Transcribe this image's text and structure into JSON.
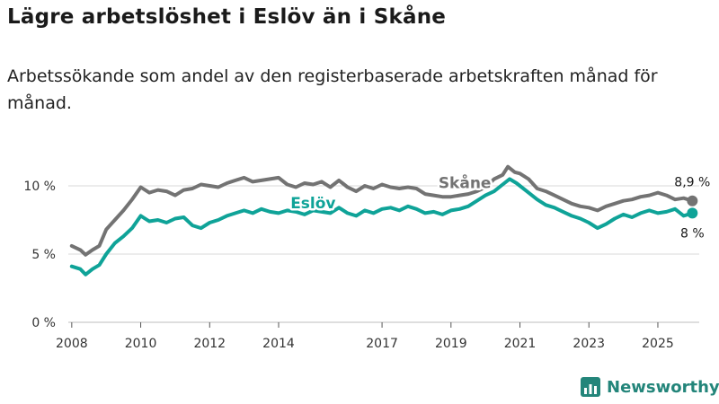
{
  "title": "Lägre arbetslöshet i Eslöv än i Skåne",
  "subtitle": "Arbetssökande som andel av den registerbaserade arbetskraften månad för månad.",
  "brand": {
    "name": "Newsworthy",
    "icon": "bar-chart-logo-icon",
    "color": "#23857a"
  },
  "colors": {
    "eslov": "#0fa398",
    "skane": "#737373",
    "grid": "#d9d9d9"
  },
  "chart_data": {
    "type": "line",
    "title": "Lägre arbetslöshet i Eslöv än i Skåne",
    "xlabel": "",
    "ylabel": "",
    "xlim": [
      2007.9,
      2026.2
    ],
    "ylim": [
      0,
      10.6
    ],
    "y_ticks": [
      {
        "value": 0,
        "label": "0 %"
      },
      {
        "value": 5,
        "label": "5 %"
      },
      {
        "value": 10,
        "label": "10 %"
      }
    ],
    "x_ticks": [
      {
        "value": 2008,
        "label": "2008"
      },
      {
        "value": 2010,
        "label": "2010"
      },
      {
        "value": 2012,
        "label": "2012"
      },
      {
        "value": 2014,
        "label": "2014"
      },
      {
        "value": 2017,
        "label": "2017"
      },
      {
        "value": 2019,
        "label": "2019"
      },
      {
        "value": 2021,
        "label": "2021"
      },
      {
        "value": 2023,
        "label": "2023"
      },
      {
        "value": 2025,
        "label": "2025"
      }
    ],
    "series": [
      {
        "name": "Skåne",
        "color": "#737373",
        "end_label": "8,9 %",
        "points": [
          [
            2008.0,
            5.6
          ],
          [
            2008.25,
            5.3
          ],
          [
            2008.4,
            4.95
          ],
          [
            2008.6,
            5.3
          ],
          [
            2008.8,
            5.6
          ],
          [
            2009.0,
            6.8
          ],
          [
            2009.25,
            7.5
          ],
          [
            2009.5,
            8.2
          ],
          [
            2009.75,
            9.0
          ],
          [
            2010.0,
            9.9
          ],
          [
            2010.25,
            9.5
          ],
          [
            2010.5,
            9.7
          ],
          [
            2010.75,
            9.6
          ],
          [
            2011.0,
            9.3
          ],
          [
            2011.25,
            9.7
          ],
          [
            2011.5,
            9.8
          ],
          [
            2011.75,
            10.1
          ],
          [
            2012.0,
            10.0
          ],
          [
            2012.25,
            9.9
          ],
          [
            2012.5,
            10.2
          ],
          [
            2012.75,
            10.4
          ],
          [
            2013.0,
            10.6
          ],
          [
            2013.25,
            10.3
          ],
          [
            2013.5,
            10.4
          ],
          [
            2013.75,
            10.5
          ],
          [
            2014.0,
            10.6
          ],
          [
            2014.25,
            10.1
          ],
          [
            2014.5,
            9.9
          ],
          [
            2014.75,
            10.2
          ],
          [
            2015.0,
            10.1
          ],
          [
            2015.25,
            10.3
          ],
          [
            2015.5,
            9.9
          ],
          [
            2015.75,
            10.4
          ],
          [
            2016.0,
            9.9
          ],
          [
            2016.25,
            9.6
          ],
          [
            2016.5,
            10.0
          ],
          [
            2016.75,
            9.8
          ],
          [
            2017.0,
            10.1
          ],
          [
            2017.25,
            9.9
          ],
          [
            2017.5,
            9.8
          ],
          [
            2017.75,
            9.9
          ],
          [
            2018.0,
            9.8
          ],
          [
            2018.25,
            9.4
          ],
          [
            2018.5,
            9.3
          ],
          [
            2018.75,
            9.2
          ],
          [
            2019.0,
            9.2
          ],
          [
            2019.25,
            9.3
          ],
          [
            2019.5,
            9.4
          ],
          [
            2019.75,
            9.6
          ],
          [
            2020.0,
            9.9
          ],
          [
            2020.25,
            10.5
          ],
          [
            2020.5,
            10.8
          ],
          [
            2020.65,
            11.4
          ],
          [
            2020.85,
            11.0
          ],
          [
            2021.0,
            10.9
          ],
          [
            2021.25,
            10.5
          ],
          [
            2021.5,
            9.8
          ],
          [
            2021.75,
            9.6
          ],
          [
            2022.0,
            9.3
          ],
          [
            2022.25,
            9.0
          ],
          [
            2022.5,
            8.7
          ],
          [
            2022.75,
            8.5
          ],
          [
            2023.0,
            8.4
          ],
          [
            2023.25,
            8.2
          ],
          [
            2023.5,
            8.5
          ],
          [
            2023.75,
            8.7
          ],
          [
            2024.0,
            8.9
          ],
          [
            2024.25,
            9.0
          ],
          [
            2024.5,
            9.2
          ],
          [
            2024.75,
            9.3
          ],
          [
            2025.0,
            9.5
          ],
          [
            2025.25,
            9.3
          ],
          [
            2025.5,
            9.0
          ],
          [
            2025.75,
            9.1
          ],
          [
            2026.0,
            8.9
          ]
        ]
      },
      {
        "name": "Eslöv",
        "color": "#0fa398",
        "end_label": "8 %",
        "points": [
          [
            2008.0,
            4.1
          ],
          [
            2008.25,
            3.9
          ],
          [
            2008.4,
            3.5
          ],
          [
            2008.6,
            3.9
          ],
          [
            2008.8,
            4.2
          ],
          [
            2009.0,
            5.0
          ],
          [
            2009.25,
            5.8
          ],
          [
            2009.5,
            6.3
          ],
          [
            2009.75,
            6.9
          ],
          [
            2010.0,
            7.8
          ],
          [
            2010.25,
            7.4
          ],
          [
            2010.5,
            7.5
          ],
          [
            2010.75,
            7.3
          ],
          [
            2011.0,
            7.6
          ],
          [
            2011.25,
            7.7
          ],
          [
            2011.5,
            7.1
          ],
          [
            2011.75,
            6.9
          ],
          [
            2012.0,
            7.3
          ],
          [
            2012.25,
            7.5
          ],
          [
            2012.5,
            7.8
          ],
          [
            2012.75,
            8.0
          ],
          [
            2013.0,
            8.2
          ],
          [
            2013.25,
            8.0
          ],
          [
            2013.5,
            8.3
          ],
          [
            2013.75,
            8.1
          ],
          [
            2014.0,
            8.0
          ],
          [
            2014.25,
            8.2
          ],
          [
            2014.5,
            8.1
          ],
          [
            2014.75,
            7.9
          ],
          [
            2015.0,
            8.2
          ],
          [
            2015.25,
            8.1
          ],
          [
            2015.5,
            8.0
          ],
          [
            2015.75,
            8.4
          ],
          [
            2016.0,
            8.0
          ],
          [
            2016.25,
            7.8
          ],
          [
            2016.5,
            8.2
          ],
          [
            2016.75,
            8.0
          ],
          [
            2017.0,
            8.3
          ],
          [
            2017.25,
            8.4
          ],
          [
            2017.5,
            8.2
          ],
          [
            2017.75,
            8.5
          ],
          [
            2018.0,
            8.3
          ],
          [
            2018.25,
            8.0
          ],
          [
            2018.5,
            8.1
          ],
          [
            2018.75,
            7.9
          ],
          [
            2019.0,
            8.2
          ],
          [
            2019.25,
            8.3
          ],
          [
            2019.5,
            8.5
          ],
          [
            2019.75,
            8.9
          ],
          [
            2020.0,
            9.3
          ],
          [
            2020.25,
            9.6
          ],
          [
            2020.5,
            10.1
          ],
          [
            2020.7,
            10.5
          ],
          [
            2020.9,
            10.2
          ],
          [
            2021.0,
            10.0
          ],
          [
            2021.25,
            9.5
          ],
          [
            2021.5,
            9.0
          ],
          [
            2021.75,
            8.6
          ],
          [
            2022.0,
            8.4
          ],
          [
            2022.25,
            8.1
          ],
          [
            2022.5,
            7.8
          ],
          [
            2022.75,
            7.6
          ],
          [
            2023.0,
            7.3
          ],
          [
            2023.25,
            6.9
          ],
          [
            2023.5,
            7.2
          ],
          [
            2023.75,
            7.6
          ],
          [
            2024.0,
            7.9
          ],
          [
            2024.25,
            7.7
          ],
          [
            2024.5,
            8.0
          ],
          [
            2024.75,
            8.2
          ],
          [
            2025.0,
            8.0
          ],
          [
            2025.25,
            8.1
          ],
          [
            2025.5,
            8.3
          ],
          [
            2025.75,
            7.8
          ],
          [
            2026.0,
            8.0
          ]
        ]
      }
    ],
    "annotations": [
      {
        "series": "Skåne",
        "text": "Skåne",
        "at": [
          2019.4,
          9.85
        ]
      },
      {
        "series": "Eslöv",
        "text": "Eslöv",
        "at": [
          2015.0,
          8.35
        ]
      }
    ]
  }
}
